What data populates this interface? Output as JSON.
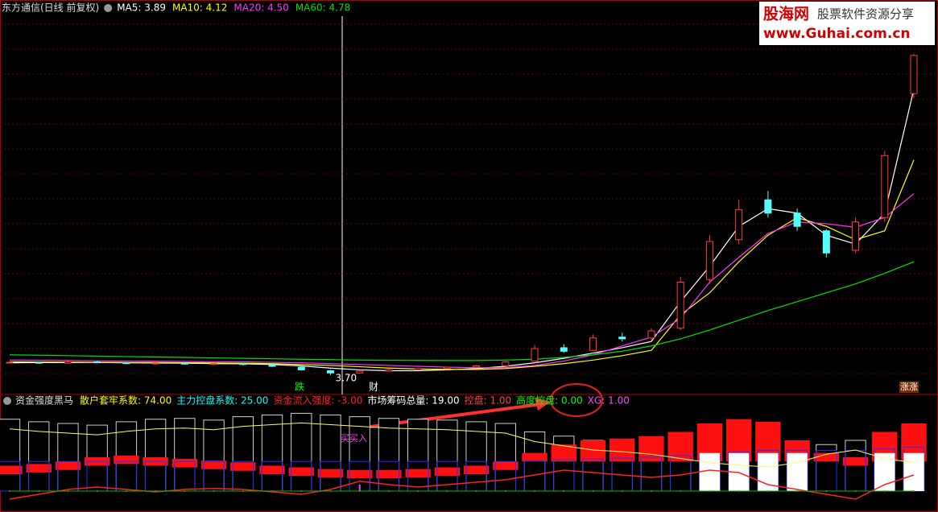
{
  "chart_data": [
    {
      "type": "candlestick",
      "title": "东方通信(日线 前复权)",
      "categories": [
        null,
        null,
        null,
        null,
        null,
        null,
        null,
        null,
        null,
        null,
        null,
        null,
        null,
        null,
        null,
        null,
        null,
        null,
        null,
        null,
        null,
        null,
        null,
        null,
        null,
        null,
        null,
        null,
        null,
        null,
        null,
        null
      ],
      "open": [
        5.1,
        5.15,
        5.05,
        5.2,
        5.1,
        5.0,
        5.05,
        4.95,
        5.0,
        4.9,
        4.6,
        4.2,
        3.95,
        4.15,
        4.3,
        4.45,
        4.6,
        4.75,
        5.3,
        6.8,
        6.5,
        8.0,
        7.9,
        9.0,
        14.5,
        19.0,
        23.5,
        22.0,
        20.0,
        17.8,
        21.5,
        35.5
      ],
      "high": [
        5.25,
        5.2,
        5.3,
        5.3,
        5.15,
        5.1,
        5.1,
        5.05,
        5.05,
        4.95,
        4.7,
        4.3,
        4.25,
        4.4,
        4.5,
        4.7,
        4.85,
        5.3,
        7.1,
        7.2,
        8.3,
        8.5,
        9.0,
        14.8,
        19.5,
        23.5,
        24.5,
        22.5,
        20.2,
        21.5,
        29.0,
        40.0
      ],
      "low": [
        5.05,
        5.0,
        5.0,
        5.05,
        4.95,
        4.9,
        4.9,
        4.85,
        4.8,
        4.6,
        4.2,
        3.7,
        3.9,
        4.1,
        4.25,
        4.4,
        4.55,
        4.7,
        5.2,
        6.2,
        6.4,
        7.5,
        7.6,
        8.8,
        14.0,
        18.5,
        21.5,
        20.0,
        17.0,
        17.5,
        21.0,
        35.0
      ],
      "close": [
        5.15,
        5.05,
        5.2,
        5.1,
        5.0,
        5.05,
        4.95,
        5.0,
        4.9,
        4.7,
        4.3,
        3.95,
        4.15,
        4.3,
        4.45,
        4.6,
        4.75,
        5.2,
        6.7,
        6.4,
        7.9,
        7.8,
        8.7,
        14.2,
        18.8,
        22.4,
        22.0,
        20.5,
        17.5,
        21.0,
        28.5,
        39.8
      ],
      "low_value_labels": [
        null,
        null,
        null,
        null,
        null,
        null,
        null,
        null,
        null,
        null,
        null,
        "3.70",
        null,
        null,
        null,
        null,
        null,
        null,
        null,
        null,
        null,
        null,
        null,
        null,
        null,
        null,
        null,
        null,
        null,
        null,
        null,
        null
      ],
      "up_color": "#ff3c3c",
      "down_color": "#54ffff",
      "ylim": [
        2.43,
        44.25
      ],
      "grid": true,
      "series": [
        {
          "name": "MA5: 3.89",
          "color": "#ffffff",
          "values": [
            5.1,
            5.12,
            5.12,
            5.14,
            5.1,
            5.08,
            5.05,
            5.0,
            4.98,
            4.9,
            4.75,
            4.5,
            4.3,
            4.2,
            4.2,
            4.3,
            4.45,
            4.7,
            5.1,
            5.6,
            6.2,
            6.8,
            7.5,
            12.0,
            16.0,
            20.5,
            22.5,
            22.0,
            19.5,
            18.5,
            22.0,
            36.0
          ]
        },
        {
          "name": "MA10: 4.12",
          "color": "#ffff00",
          "values": [
            5.2,
            5.18,
            5.16,
            5.15,
            5.14,
            5.12,
            5.1,
            5.08,
            5.05,
            5.0,
            4.9,
            4.8,
            4.65,
            4.5,
            4.4,
            4.35,
            4.35,
            4.45,
            4.7,
            5.0,
            5.4,
            5.9,
            6.5,
            10.5,
            13.0,
            16.5,
            19.5,
            21.5,
            20.5,
            19.0,
            20.0,
            28.0
          ]
        },
        {
          "name": "MA20: 4.50",
          "color": "#ff33ff",
          "values": [
            5.4,
            5.38,
            5.35,
            5.32,
            5.3,
            5.28,
            5.25,
            5.22,
            5.2,
            5.15,
            5.1,
            5.0,
            4.9,
            4.8,
            4.7,
            4.6,
            4.55,
            4.55,
            4.8,
            5.3,
            6.0,
            7.0,
            8.0,
            10.1,
            14.2,
            17.0,
            19.7,
            21.0,
            20.8,
            20.4,
            21.5,
            24.2
          ]
        },
        {
          "name": "MA60: 4.78",
          "color": "#00e000",
          "values": [
            6.0,
            5.95,
            5.9,
            5.85,
            5.8,
            5.75,
            5.7,
            5.65,
            5.6,
            5.55,
            5.5,
            5.45,
            5.4,
            5.38,
            5.36,
            5.35,
            5.35,
            5.4,
            5.5,
            5.7,
            6.0,
            6.4,
            7.0,
            7.8,
            8.8,
            9.9,
            11.0,
            12.0,
            13.0,
            14.0,
            15.2,
            16.5
          ]
        }
      ],
      "annotations": [
        "跌",
        "财",
        "涨涨"
      ]
    },
    {
      "type": "indicator",
      "title": "资金强度黑马",
      "ylim": [
        0,
        100
      ],
      "y2lim": [
        -60,
        60
      ],
      "categories": [
        null,
        null,
        null,
        null,
        null,
        null,
        null,
        null,
        null,
        null,
        null,
        null,
        null,
        null,
        null,
        null,
        null,
        null,
        null,
        null,
        null,
        null,
        null,
        null,
        null,
        null,
        null,
        null,
        null,
        null,
        null,
        null
      ],
      "series": [
        {
          "name": "散户套牢系数: 74.00",
          "color": "#ffff00",
          "values": [
            85,
            82,
            80,
            78,
            82,
            85,
            86,
            84,
            88,
            90,
            92,
            90,
            88,
            86,
            85,
            84,
            82,
            80,
            70,
            65,
            60,
            58,
            55,
            50,
            45,
            42,
            40,
            45,
            55,
            60,
            50,
            45
          ]
        },
        {
          "name": "主力控盘系数: 25.00",
          "color": "#00ffff",
          "values": [
            30,
            32,
            35,
            40,
            42,
            40,
            38,
            36,
            34,
            30,
            28,
            26,
            25,
            25,
            26,
            28,
            30,
            35,
            45,
            55,
            60,
            62,
            65,
            70,
            80,
            85,
            82,
            60,
            45,
            40,
            70,
            80
          ]
        },
        {
          "name": "资金流入强度: -3.00",
          "color": "#ff2020",
          "axis": "y2",
          "values": [
            -40,
            -30,
            -20,
            -15,
            -20,
            -25,
            -20,
            -18,
            -20,
            -25,
            -30,
            -20,
            -3,
            -10,
            -15,
            -10,
            -5,
            0,
            10,
            20,
            15,
            10,
            5,
            10,
            20,
            15,
            -10,
            -20,
            -30,
            -40,
            -10,
            10
          ]
        },
        {
          "name": "市场筹码总量: 19.00",
          "color": "#ffffff",
          "values": [
            35,
            35,
            35,
            35,
            35,
            35,
            35,
            35,
            35,
            35,
            35,
            35,
            35,
            35,
            35,
            35,
            35,
            35,
            36,
            37,
            38,
            39,
            40,
            42,
            44,
            46,
            48,
            48,
            48,
            48,
            50,
            52
          ]
        },
        {
          "name": "控盘: 1.00",
          "color": "#ff4040",
          "values": [
            1,
            1,
            1,
            1,
            1,
            1,
            1,
            1,
            1,
            1,
            1,
            1,
            1,
            1,
            1,
            1,
            1,
            1,
            1,
            1,
            1,
            1,
            1,
            1,
            1,
            1,
            1,
            1,
            1,
            1,
            1,
            1
          ]
        },
        {
          "name": "高度控盘: 0.00",
          "color": "#00ff00",
          "values": [
            0,
            0,
            0,
            0,
            0,
            0,
            0,
            0,
            0,
            0,
            0,
            0,
            0,
            0,
            0,
            0,
            0,
            0,
            0,
            0,
            0,
            0,
            0,
            0,
            1,
            1,
            1,
            1,
            0,
            0,
            1,
            1
          ]
        },
        {
          "name": "XG: 1.00",
          "color": "#ff44ff",
          "values": [
            0,
            0,
            0,
            0,
            0,
            0,
            0,
            0,
            0,
            0,
            0,
            0,
            1,
            0,
            0,
            0,
            0,
            0,
            0,
            0,
            0,
            0,
            0,
            0,
            0,
            0,
            0,
            0,
            0,
            0,
            0,
            0
          ]
        }
      ],
      "annotations": [
        "买买入"
      ]
    }
  ],
  "watermark": {
    "site": "股海网",
    "slogan": "股票软件资源分享",
    "url": "www.Guhai.com.cn"
  }
}
